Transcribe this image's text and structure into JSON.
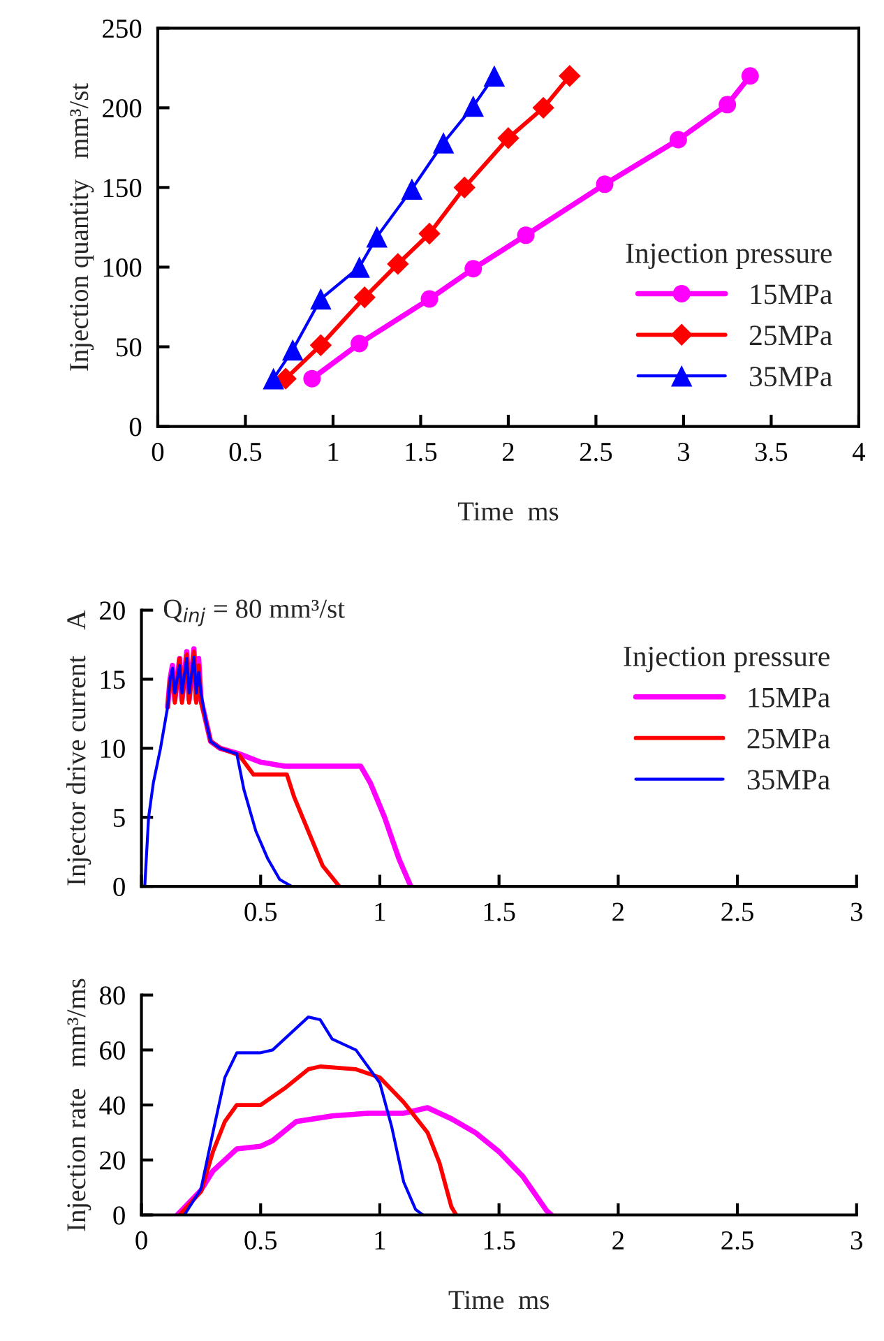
{
  "chart_data": [
    {
      "type": "line",
      "xlabel": "Time  ms",
      "ylabel": "Injection quantity   mm³/st",
      "legend_title": "Injection pressure",
      "legend": "bottom right",
      "xlim": [
        0,
        4
      ],
      "xticks": [
        0,
        0.5,
        1,
        1.5,
        2,
        2.5,
        3,
        3.5,
        4
      ],
      "ylim": [
        0,
        250
      ],
      "yticks": [
        0,
        50,
        100,
        150,
        200,
        250
      ],
      "grid": false,
      "series": [
        {
          "name": "15MPa",
          "color": "#ff00ff",
          "marker": "circle",
          "x": [
            0.88,
            1.15,
            1.55,
            1.8,
            2.1,
            2.55,
            2.97,
            3.25,
            3.38
          ],
          "values": [
            30,
            52,
            80,
            99,
            120,
            152,
            180,
            202,
            220
          ]
        },
        {
          "name": "25MPa",
          "color": "#ff0000",
          "marker": "diamond",
          "x": [
            0.73,
            0.93,
            1.18,
            1.37,
            1.55,
            1.75,
            2.0,
            2.2,
            2.35
          ],
          "values": [
            30,
            51,
            81,
            102,
            121,
            150,
            181,
            200,
            220
          ]
        },
        {
          "name": "35MPa",
          "color": "#0000ff",
          "marker": "triangle",
          "x": [
            0.66,
            0.77,
            0.93,
            1.15,
            1.25,
            1.45,
            1.63,
            1.8,
            1.92
          ],
          "values": [
            30,
            48,
            80,
            100,
            119,
            149,
            178,
            201,
            220
          ]
        }
      ]
    },
    {
      "type": "line",
      "ylabel": "Injector drive current    A",
      "legend_title": "Injection pressure",
      "legend": "right",
      "annotations": [
        "Q$_{inj}$ = 80 mm³/st"
      ],
      "xlim": [
        0,
        3
      ],
      "xticks": [
        {
          "value": 0,
          "label": null
        },
        0.5,
        1,
        1.5,
        2,
        2.5,
        3
      ],
      "ylim": [
        0,
        20
      ],
      "yticks": [
        0,
        5,
        10,
        15,
        20
      ],
      "grid": false,
      "series": [
        {
          "name": "15MPa",
          "color": "#ff00ff",
          "x": [
            0.11,
            0.12,
            0.13,
            0.14,
            0.16,
            0.17,
            0.19,
            0.2,
            0.22,
            0.23,
            0.24,
            0.25,
            0.27,
            0.29,
            0.33,
            0.41,
            0.5,
            0.6,
            0.92,
            0.96,
            1.02,
            1.08,
            1.13
          ],
          "values": [
            13,
            15,
            16,
            13.5,
            16.5,
            13.5,
            17,
            13.5,
            17.2,
            13.5,
            16.5,
            13.5,
            12,
            10.5,
            10,
            9.6,
            9,
            8.7,
            8.7,
            7.5,
            5,
            2,
            0
          ]
        },
        {
          "name": "25MPa",
          "color": "#ff0000",
          "x": [
            0.11,
            0.12,
            0.13,
            0.14,
            0.16,
            0.17,
            0.19,
            0.2,
            0.22,
            0.23,
            0.24,
            0.25,
            0.27,
            0.29,
            0.33,
            0.41,
            0.47,
            0.61,
            0.64,
            0.7,
            0.76,
            0.83
          ],
          "values": [
            13,
            15,
            15.5,
            13.3,
            16.5,
            13.3,
            16.8,
            13.3,
            17,
            13.3,
            16,
            13.3,
            12,
            10.5,
            10,
            9.5,
            8.1,
            8.1,
            6.5,
            4,
            1.5,
            0
          ]
        },
        {
          "name": "35MPa",
          "color": "#0000ff",
          "x": [
            0.014,
            0.03,
            0.05,
            0.08,
            0.11,
            0.12,
            0.13,
            0.14,
            0.16,
            0.17,
            0.19,
            0.2,
            0.22,
            0.23,
            0.24,
            0.25,
            0.27,
            0.29,
            0.33,
            0.4,
            0.43,
            0.48,
            0.53,
            0.58,
            0.63
          ],
          "values": [
            0,
            5,
            7.5,
            10,
            13,
            15,
            15.8,
            14,
            16,
            14,
            16.5,
            14,
            16.6,
            14,
            15.5,
            14,
            12,
            10.5,
            10,
            9.6,
            7,
            4,
            2,
            0.5,
            0
          ]
        }
      ]
    },
    {
      "type": "line",
      "xlabel": "Time  ms",
      "ylabel": "Injection rate   mm³/ms",
      "xlim": [
        0,
        3
      ],
      "xticks": [
        0,
        0.5,
        1,
        1.5,
        2,
        2.5,
        3
      ],
      "ylim": [
        0,
        80
      ],
      "yticks": [
        0,
        20,
        40,
        60,
        80
      ],
      "grid": false,
      "series": [
        {
          "color": "#ff00ff",
          "x": [
            0.15,
            0.25,
            0.3,
            0.4,
            0.5,
            0.55,
            0.65,
            0.8,
            0.95,
            1.1,
            1.2,
            1.3,
            1.4,
            1.5,
            1.6,
            1.7,
            1.72
          ],
          "values": [
            0,
            9,
            16,
            24,
            25,
            27,
            34,
            36,
            37,
            37,
            39,
            35,
            30,
            23,
            14,
            1.5,
            0
          ]
        },
        {
          "color": "#ff0000",
          "x": [
            0.16,
            0.25,
            0.3,
            0.35,
            0.4,
            0.5,
            0.6,
            0.7,
            0.75,
            0.9,
            1.0,
            1.1,
            1.2,
            1.25,
            1.3,
            1.32
          ],
          "values": [
            0,
            8.5,
            23,
            34,
            40,
            40,
            46,
            53,
            54,
            53,
            50,
            41,
            30,
            19,
            3,
            0
          ]
        },
        {
          "color": "#0000ff",
          "x": [
            0.18,
            0.25,
            0.3,
            0.35,
            0.4,
            0.5,
            0.55,
            0.6,
            0.7,
            0.75,
            0.8,
            0.9,
            0.95,
            1.0,
            1.05,
            1.1,
            1.15,
            1.18
          ],
          "values": [
            0,
            9.5,
            30,
            50,
            59,
            59,
            60,
            64,
            72,
            71,
            64,
            60,
            54,
            48,
            32,
            12,
            2,
            0
          ]
        }
      ]
    }
  ]
}
